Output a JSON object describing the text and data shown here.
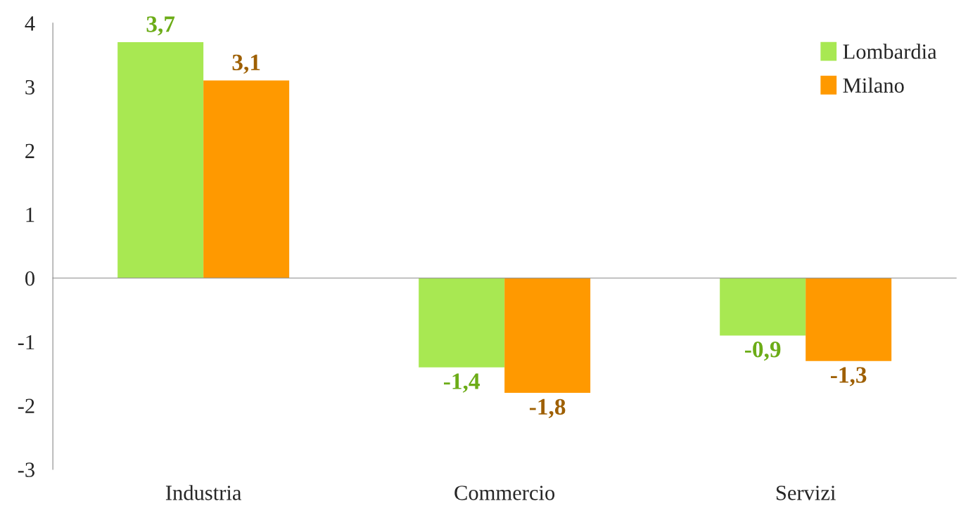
{
  "chart_data": {
    "type": "bar",
    "categories": [
      "Industria",
      "Commercio",
      "Servizi"
    ],
    "series": [
      {
        "name": "Lombardia",
        "color": "#a8e852",
        "values": [
          3.7,
          -1.4,
          -0.9
        ],
        "value_labels": [
          "3,7",
          "-1,4",
          "-0,9"
        ]
      },
      {
        "name": "Milano",
        "color": "#ff9900",
        "values": [
          3.1,
          -1.8,
          -1.3
        ],
        "value_labels": [
          "3,1",
          "-1,8",
          "-1,3"
        ]
      }
    ],
    "ylim": [
      -3,
      4
    ],
    "yticks": [
      -3,
      -2,
      -1,
      0,
      1,
      2,
      3,
      4
    ],
    "legend": "top right"
  }
}
